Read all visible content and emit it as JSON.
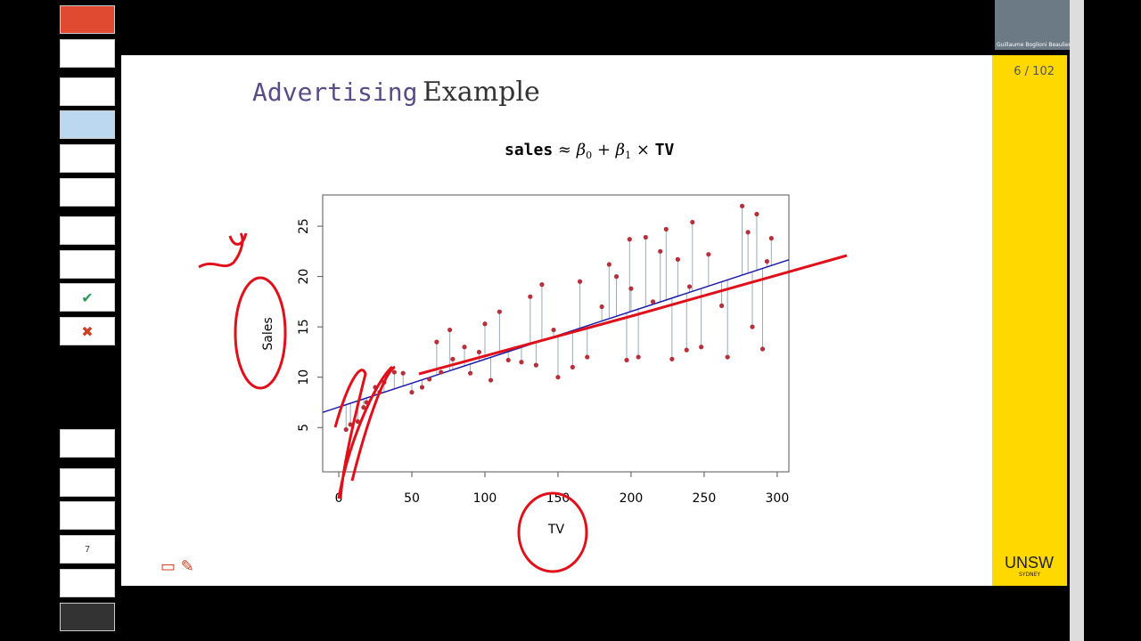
{
  "webcam": {
    "name": "Guillaume Boglioni Beaulieu"
  },
  "sidebar": {
    "page_input": "7"
  },
  "slide": {
    "title_code": "Advertising",
    "title": "Example",
    "page": "6 / 102",
    "logo": "UNSW",
    "logo_sub": "SYDNEY",
    "formula": {
      "response": "sales",
      "approx": "≈ β",
      "sub0": "0",
      "plus": "+ β",
      "sub1": "1",
      "times": "×",
      "predictor": "TV"
    }
  },
  "chart_data": {
    "type": "scatter",
    "xlabel": "TV",
    "ylabel": "Sales",
    "color": "#b5303a",
    "fit_color": "#1a1aa8",
    "xlim": [
      -11,
      308
    ],
    "ylim": [
      0.6,
      28.1
    ],
    "xticks": [
      0,
      50,
      100,
      150,
      200,
      250,
      300
    ],
    "yticks": [
      5,
      10,
      15,
      20,
      25
    ],
    "x": [
      5,
      8,
      13,
      17,
      19,
      25,
      28,
      31,
      38,
      44,
      50,
      57,
      62,
      67,
      70,
      76,
      78,
      86,
      90,
      96,
      100,
      104,
      110,
      116,
      125,
      131,
      135,
      139,
      147,
      150,
      160,
      165,
      170,
      180,
      185,
      190,
      197,
      199,
      205,
      210,
      215,
      220,
      224,
      228,
      232,
      238,
      242,
      248,
      253,
      262,
      266,
      276,
      280,
      283,
      286,
      290,
      293,
      296,
      240,
      200
    ],
    "y": [
      4.8,
      5.3,
      5.6,
      7,
      7.5,
      9,
      8.5,
      9.5,
      10.5,
      10.4,
      8.5,
      9,
      9.8,
      13.5,
      10.5,
      14.7,
      11.8,
      13,
      10.4,
      12.5,
      15.3,
      9.7,
      16.5,
      11.7,
      11.5,
      18,
      11.2,
      19.2,
      14.7,
      10,
      11,
      19.5,
      12,
      17,
      21.2,
      20,
      11.7,
      23.7,
      12,
      23.9,
      17.5,
      22.5,
      24.7,
      11.8,
      21.7,
      12.7,
      25.4,
      13,
      22.2,
      17.1,
      12,
      27,
      24.4,
      15,
      26.2,
      12.8,
      21.5,
      23.8,
      19,
      18.8
    ],
    "fit": {
      "x": [
        -11,
        308
      ],
      "y": [
        6.51,
        21.66
      ]
    }
  }
}
